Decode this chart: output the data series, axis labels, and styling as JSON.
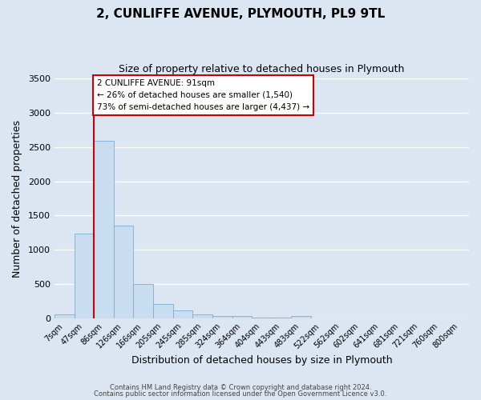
{
  "title": "2, CUNLIFFE AVENUE, PLYMOUTH, PL9 9TL",
  "subtitle": "Size of property relative to detached houses in Plymouth",
  "xlabel": "Distribution of detached houses by size in Plymouth",
  "ylabel": "Number of detached properties",
  "bar_color": "#c9ddf0",
  "bar_edge_color": "#7badd4",
  "background_color": "#dce6f2",
  "grid_color": "#ffffff",
  "bin_labels": [
    "7sqm",
    "47sqm",
    "86sqm",
    "126sqm",
    "166sqm",
    "205sqm",
    "245sqm",
    "285sqm",
    "324sqm",
    "364sqm",
    "404sqm",
    "443sqm",
    "483sqm",
    "522sqm",
    "562sqm",
    "602sqm",
    "641sqm",
    "681sqm",
    "721sqm",
    "760sqm",
    "800sqm"
  ],
  "bar_heights": [
    50,
    1240,
    2590,
    1350,
    500,
    210,
    110,
    50,
    35,
    30,
    5,
    5,
    30,
    0,
    0,
    0,
    0,
    0,
    0,
    0,
    0
  ],
  "ylim": [
    0,
    3500
  ],
  "yticks": [
    0,
    500,
    1000,
    1500,
    2000,
    2500,
    3000,
    3500
  ],
  "property_label": "2 CUNLIFFE AVENUE: 91sqm",
  "annotation_line1": "← 26% of detached houses are smaller (1,540)",
  "annotation_line2": "73% of semi-detached houses are larger (4,437) →",
  "vline_bin_index": 2,
  "vline_color": "#cc0000",
  "annotation_box_facecolor": "#ffffff",
  "annotation_box_edgecolor": "#cc0000",
  "footer1": "Contains HM Land Registry data © Crown copyright and database right 2024.",
  "footer2": "Contains public sector information licensed under the Open Government Licence v3.0."
}
